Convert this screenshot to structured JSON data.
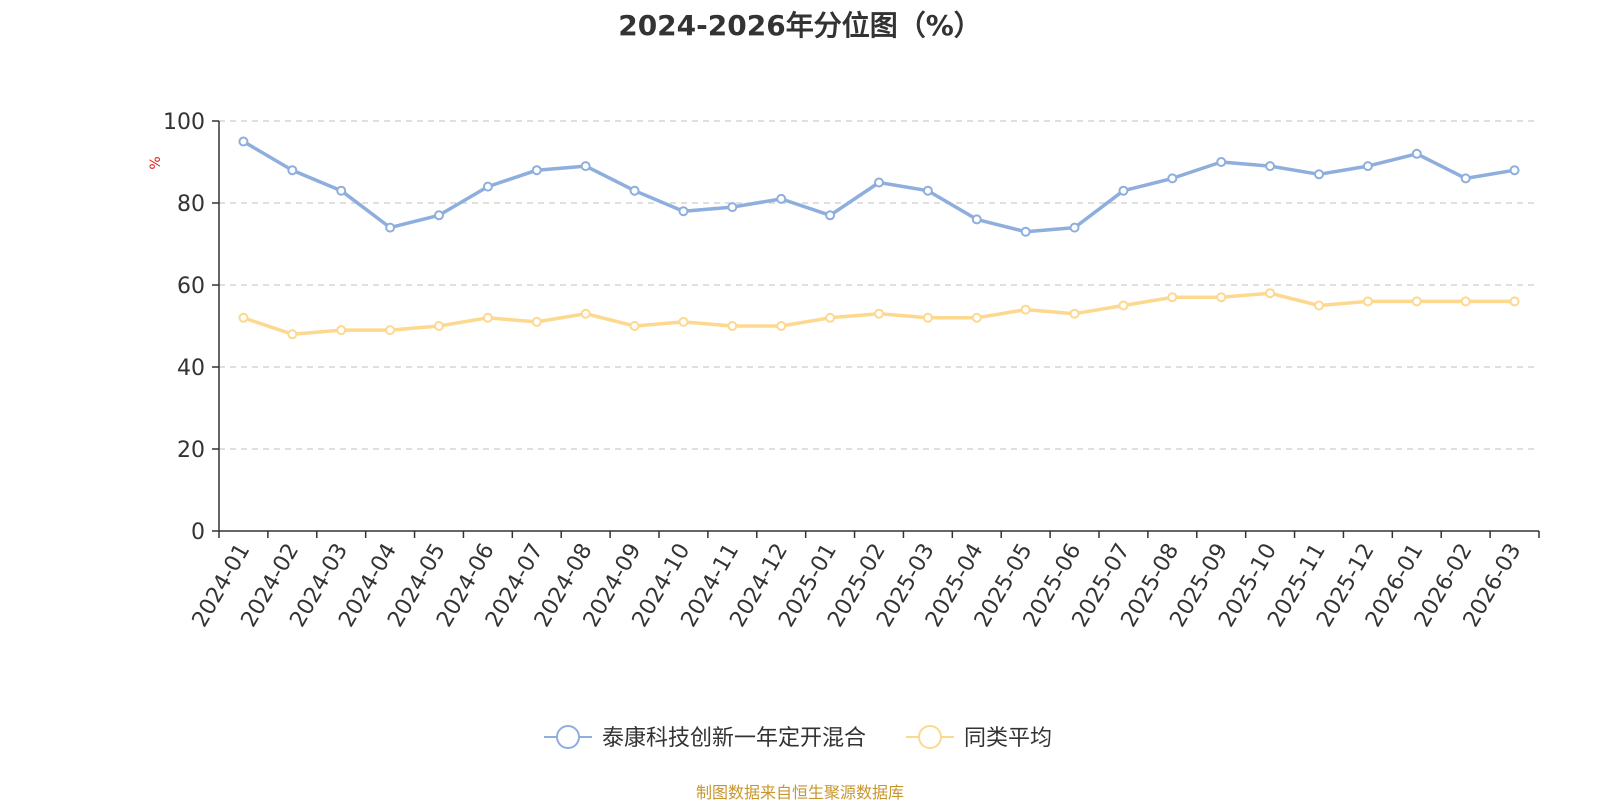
{
  "chart_data": {
    "type": "line",
    "title": "2024-2026年分位图（%）",
    "ylabel": "%",
    "xlabel": "",
    "ylim": [
      0,
      100
    ],
    "yticks": [
      0,
      20,
      40,
      60,
      80,
      100
    ],
    "grid": true,
    "legend_position": "bottom-center",
    "categories": [
      "2024-01",
      "2024-02",
      "2024-03",
      "2024-04",
      "2024-05",
      "2024-06",
      "2024-07",
      "2024-08",
      "2024-09",
      "2024-10",
      "2024-11",
      "2024-12",
      "2025-01",
      "2025-02",
      "2025-03",
      "2025-04",
      "2025-05",
      "2025-06",
      "2025-07",
      "2025-08",
      "2025-09",
      "2025-10",
      "2025-11",
      "2025-12",
      "2026-01",
      "2026-02",
      "2026-03"
    ],
    "series": [
      {
        "name": "泰康科技创新一年定开混合",
        "color": "#8eaedd",
        "values": [
          95,
          88,
          83,
          74,
          77,
          84,
          88,
          89,
          83,
          78,
          79,
          81,
          77,
          85,
          83,
          76,
          73,
          74,
          83,
          86,
          90,
          89,
          87,
          89,
          92,
          86,
          88
        ]
      },
      {
        "name": "同类平均",
        "color": "#fdd88f",
        "values": [
          52,
          48,
          49,
          49,
          50,
          52,
          51,
          53,
          50,
          51,
          50,
          50,
          52,
          53,
          52,
          52,
          54,
          53,
          55,
          57,
          57,
          58,
          55,
          56,
          56,
          56,
          56
        ]
      }
    ]
  },
  "source_note": "制图数据来自恒生聚源数据库"
}
